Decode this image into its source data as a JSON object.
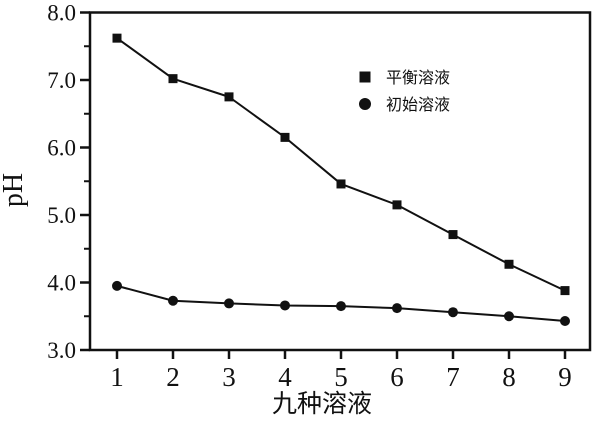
{
  "figure": {
    "background": "#ffffff",
    "ink_color": "#111111"
  },
  "chart_data": {
    "type": "line",
    "title": "",
    "xlabel": "九种溶液",
    "ylabel": "pH",
    "x": [
      1,
      2,
      3,
      4,
      5,
      6,
      7,
      8,
      9
    ],
    "xtick_labels": [
      "1",
      "2",
      "3",
      "4",
      "5",
      "6",
      "7",
      "8",
      "9"
    ],
    "ylim": [
      3.0,
      8.0
    ],
    "ytick_values": [
      3.0,
      4.0,
      5.0,
      6.0,
      7.0,
      8.0
    ],
    "ytick_labels": [
      "3.0",
      "4.0",
      "5.0",
      "6.0",
      "7.0",
      "8.0"
    ],
    "yminor_values": [
      3.5,
      4.5,
      5.5,
      6.5,
      7.5
    ],
    "grid": false,
    "legend_position": "inside-upper-right",
    "series": [
      {
        "name": "平衡溶液",
        "marker": "square",
        "color": "#111111",
        "values": [
          7.62,
          7.02,
          6.75,
          6.15,
          5.46,
          5.15,
          4.71,
          4.27,
          3.88
        ]
      },
      {
        "name": "初始溶液",
        "marker": "circle",
        "color": "#111111",
        "values": [
          3.95,
          3.73,
          3.69,
          3.66,
          3.65,
          3.62,
          3.56,
          3.5,
          3.43
        ]
      }
    ]
  }
}
